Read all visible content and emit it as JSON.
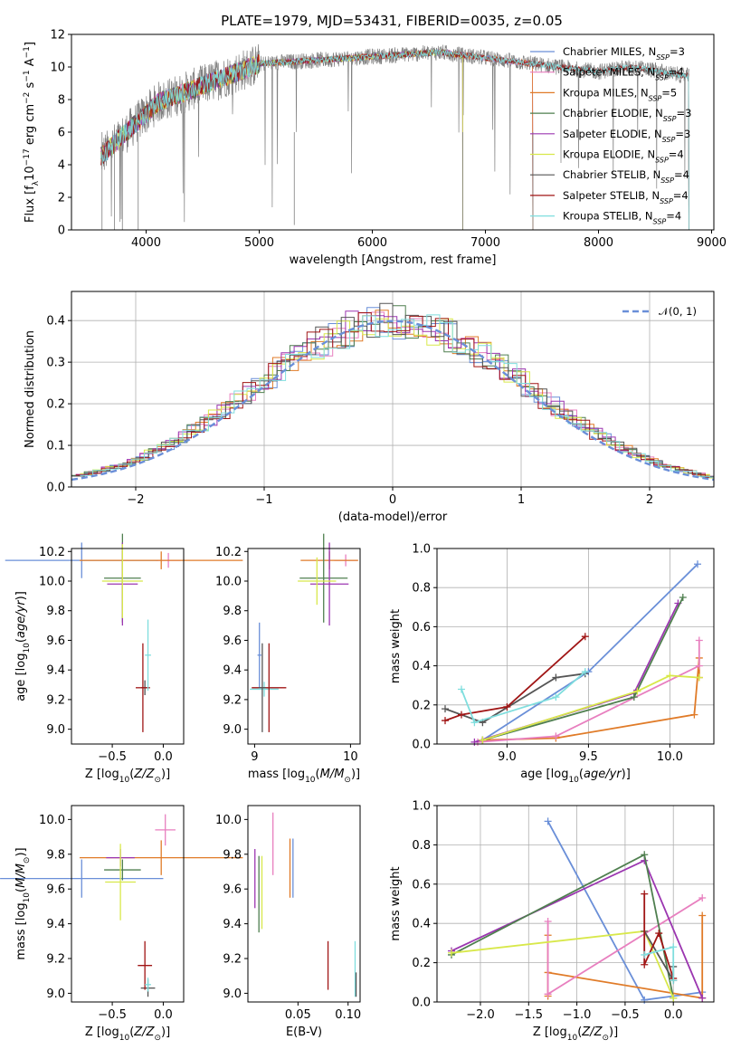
{
  "figure": {
    "title": "PLATE=1979, MJD=53431, FIBERID=0035, z=0.05"
  },
  "chart_data": [
    {
      "id": "spectrum",
      "type": "line",
      "xlabel": "wavelength [Angstrom, rest frame]",
      "ylabel": "Flux [fλ10⁻¹⁷ erg cm⁻² s⁻¹ A⁻¹]",
      "xlim": [
        3340,
        9020
      ],
      "ylim": [
        0,
        12
      ],
      "xticks": [
        4000,
        5000,
        6000,
        7000,
        8000,
        9000
      ],
      "yticks": [
        0,
        2,
        4,
        6,
        8,
        10,
        12
      ],
      "grid": false,
      "legend_position": "top-right",
      "observed": {
        "color": "#808080",
        "x_range": [
          3600,
          8800
        ]
      },
      "series": [
        {
          "name": "Chabrier MILES, N_SSP=3",
          "color": "#6a8fd8",
          "x_range": [
            3600,
            7420
          ]
        },
        {
          "name": "Salpeter MILES, N_SSP=4",
          "color": "#e87fbf",
          "x_range": [
            3600,
            7420
          ]
        },
        {
          "name": "Kroupa MILES, N_SSP=5",
          "color": "#e07b28",
          "x_range": [
            3600,
            7420
          ]
        },
        {
          "name": "Chabrier ELODIE, N_SSP=3",
          "color": "#4f7f4f",
          "x_range": [
            3600,
            6800
          ]
        },
        {
          "name": "Salpeter ELODIE, N_SSP=3",
          "color": "#9b36b0",
          "x_range": [
            3600,
            6800
          ]
        },
        {
          "name": "Kroupa ELODIE, N_SSP=4",
          "color": "#d8e84a",
          "x_range": [
            3600,
            6800
          ]
        },
        {
          "name": "Chabrier STELIB, N_SSP=4",
          "color": "#555555",
          "x_range": [
            3600,
            8800
          ]
        },
        {
          "name": "Salpeter STELIB, N_SSP=4",
          "color": "#a01515",
          "x_range": [
            3600,
            8800
          ]
        },
        {
          "name": "Kroupa STELIB, N_SSP=4",
          "color": "#7fdede",
          "x_range": [
            3600,
            8800
          ]
        }
      ],
      "legend_labels": [
        {
          "pre": "Chabrier MILES, N",
          "sub": "SSP",
          "post": "=3"
        },
        {
          "pre": "Salpeter MILES, N",
          "sub": "SSP",
          "post": "=4"
        },
        {
          "pre": "Kroupa MILES, N",
          "sub": "SSP",
          "post": "=5"
        },
        {
          "pre": "Chabrier ELODIE, N",
          "sub": "SSP",
          "post": "=3"
        },
        {
          "pre": "Salpeter ELODIE, N",
          "sub": "SSP",
          "post": "=3"
        },
        {
          "pre": "Kroupa ELODIE, N",
          "sub": "SSP",
          "post": "=4"
        },
        {
          "pre": "Chabrier STELIB, N",
          "sub": "SSP",
          "post": "=4"
        },
        {
          "pre": "Salpeter STELIB, N",
          "sub": "SSP",
          "post": "=4"
        },
        {
          "pre": "Kroupa STELIB, N",
          "sub": "SSP",
          "post": "=4"
        }
      ]
    },
    {
      "id": "residuals",
      "type": "line",
      "xlabel": "(data-model)/error",
      "ylabel": "Normed distribution",
      "xlim": [
        -2.5,
        2.5
      ],
      "ylim": [
        0,
        0.47
      ],
      "xticks": [
        -2,
        -1,
        0,
        1,
        2
      ],
      "yticks": [
        0.0,
        0.1,
        0.2,
        0.3,
        0.4
      ],
      "grid": true,
      "legend_position": "top-right",
      "gaussian": {
        "name": "N(0,1)",
        "mean": 0,
        "sigma": 1,
        "color": "#6a8fd8"
      },
      "series_colors": [
        "#6a8fd8",
        "#e87fbf",
        "#e07b28",
        "#4f7f4f",
        "#9b36b0",
        "#d8e84a",
        "#555555",
        "#a01515",
        "#7fdede"
      ]
    },
    {
      "id": "age_vs_Z",
      "type": "scatter",
      "xlabel": "Z [log10(Z/Z⊙)]",
      "ylabel": "age [log10(age/yr)]",
      "xlim": [
        -0.9,
        0.2
      ],
      "ylim": [
        8.9,
        10.22
      ],
      "xticks": [
        -0.5,
        0.0
      ],
      "yticks": [
        9.0,
        9.2,
        9.4,
        9.6,
        9.8,
        10.0,
        10.2
      ],
      "points": [
        {
          "color": "#6a8fd8",
          "x": -0.8,
          "y": 10.14,
          "xerr": 0.75,
          "yerr": 0.12
        },
        {
          "color": "#e87fbf",
          "x": 0.05,
          "y": 10.14,
          "xerr": 0.12,
          "yerr": 0.05
        },
        {
          "color": "#e07b28",
          "x": -0.02,
          "y": 10.14,
          "xerr": 0.8,
          "yerr": 0.06
        },
        {
          "color": "#4f7f4f",
          "x": -0.4,
          "y": 10.02,
          "xerr": 0.18,
          "yerr": 0.3
        },
        {
          "color": "#9b36b0",
          "x": -0.4,
          "y": 9.98,
          "xerr": 0.15,
          "yerr": 0.28
        },
        {
          "color": "#d8e84a",
          "x": -0.4,
          "y": 10.0,
          "xerr": 0.2,
          "yerr": 0.25
        },
        {
          "color": "#555555",
          "x": -0.18,
          "y": 9.28,
          "xerr": 0.04,
          "yerr": 0.05
        },
        {
          "color": "#a01515",
          "x": -0.2,
          "y": 9.28,
          "xerr": 0.07,
          "yerr": 0.3
        },
        {
          "color": "#7fdede",
          "x": -0.15,
          "y": 9.5,
          "xerr": 0.03,
          "yerr": 0.24
        }
      ]
    },
    {
      "id": "age_vs_mass",
      "type": "scatter",
      "xlabel": "mass [log10(M/M⊙)]",
      "ylabel": "",
      "xlim": [
        8.93,
        10.1
      ],
      "ylim": [
        8.9,
        10.22
      ],
      "xticks": [
        9,
        10
      ],
      "yticks": [
        9.0,
        9.2,
        9.4,
        9.6,
        9.8,
        10.0,
        10.2
      ],
      "points": [
        {
          "color": "#6a8fd8",
          "x": 9.05,
          "y": 9.5,
          "xerr": 0.02,
          "yerr": 0.22
        },
        {
          "color": "#7fdede",
          "x": 9.1,
          "y": 9.27,
          "xerr": 0.15,
          "yerr": 0.05
        },
        {
          "color": "#a01515",
          "x": 9.15,
          "y": 9.28,
          "xerr": 0.18,
          "yerr": 0.3
        },
        {
          "color": "#e87fbf",
          "x": 9.95,
          "y": 10.14,
          "xerr": 0.12,
          "yerr": 0.04
        },
        {
          "color": "#e07b28",
          "x": 9.78,
          "y": 10.14,
          "xerr": 0.3,
          "yerr": 0.06
        },
        {
          "color": "#4f7f4f",
          "x": 9.72,
          "y": 10.02,
          "xerr": 0.25,
          "yerr": 0.3
        },
        {
          "color": "#9b36b0",
          "x": 9.78,
          "y": 9.98,
          "xerr": 0.2,
          "yerr": 0.28
        },
        {
          "color": "#d8e84a",
          "x": 9.65,
          "y": 10.0,
          "xerr": 0.2,
          "yerr": 0.16
        },
        {
          "color": "#555555",
          "x": 9.08,
          "y": 9.28,
          "xerr": 0.04,
          "yerr": 0.3
        }
      ]
    },
    {
      "id": "weight_vs_age",
      "type": "line",
      "xlabel": "age [log10(age/yr)]",
      "ylabel": "mass weight",
      "xlim": [
        8.57,
        10.27
      ],
      "ylim": [
        0,
        1.0
      ],
      "xticks": [
        9.0,
        9.5,
        10.0
      ],
      "yticks": [
        0.0,
        0.2,
        0.4,
        0.6,
        0.8,
        1.0
      ],
      "grid": true,
      "series": [
        {
          "color": "#6a8fd8",
          "x": [
            8.85,
            9.5,
            10.17
          ],
          "y": [
            0.02,
            0.37,
            0.92
          ]
        },
        {
          "color": "#e07b28",
          "x": [
            8.85,
            9.3,
            10.15,
            10.18,
            10.18
          ],
          "y": [
            0.02,
            0.03,
            0.15,
            0.44,
            0.34
          ]
        },
        {
          "color": "#e87fbf",
          "x": [
            8.82,
            9.3,
            10.18,
            10.18
          ],
          "y": [
            0.01,
            0.04,
            0.4,
            0.53
          ]
        },
        {
          "color": "#9b36b0",
          "x": [
            8.8,
            9.78,
            10.05
          ],
          "y": [
            0.01,
            0.26,
            0.72
          ]
        },
        {
          "color": "#4f7f4f",
          "x": [
            8.85,
            9.78,
            10.08
          ],
          "y": [
            0.02,
            0.24,
            0.75
          ]
        },
        {
          "color": "#d8e84a",
          "x": [
            8.85,
            9.8,
            10.0,
            10.18
          ],
          "y": [
            0.02,
            0.27,
            0.35,
            0.34
          ]
        },
        {
          "color": "#555555",
          "x": [
            8.62,
            8.85,
            9.3,
            9.48
          ],
          "y": [
            0.18,
            0.11,
            0.34,
            0.36
          ]
        },
        {
          "color": "#a01515",
          "x": [
            8.62,
            8.72,
            9.0,
            9.48
          ],
          "y": [
            0.12,
            0.15,
            0.19,
            0.55
          ]
        },
        {
          "color": "#7fdede",
          "x": [
            8.72,
            8.8,
            9.3,
            9.48
          ],
          "y": [
            0.28,
            0.11,
            0.24,
            0.37
          ]
        }
      ]
    },
    {
      "id": "mass_vs_Z",
      "type": "scatter",
      "xlabel": "Z [log10(Z/Z⊙)]",
      "ylabel": "mass [log10(M/M⊙)]",
      "xlim": [
        -0.9,
        0.2
      ],
      "ylim": [
        8.95,
        10.08
      ],
      "xticks": [
        -0.5,
        0.0
      ],
      "yticks": [
        9.0,
        9.2,
        9.4,
        9.6,
        9.8,
        10.0
      ],
      "points": [
        {
          "color": "#6a8fd8",
          "x": -0.8,
          "y": 9.66,
          "xerr": 0.8,
          "yerr": 0.11
        },
        {
          "color": "#e87fbf",
          "x": 0.02,
          "y": 9.94,
          "xerr": 0.1,
          "yerr": 0.09
        },
        {
          "color": "#e07b28",
          "x": -0.02,
          "y": 9.78,
          "xerr": 0.8,
          "yerr": 0.1
        },
        {
          "color": "#4f7f4f",
          "x": -0.4,
          "y": 9.71,
          "xerr": 0.18,
          "yerr": 0.06
        },
        {
          "color": "#9b36b0",
          "x": -0.42,
          "y": 9.78,
          "xerr": 0.14,
          "yerr": 0.05
        },
        {
          "color": "#d8e84a",
          "x": -0.42,
          "y": 9.64,
          "xerr": 0.15,
          "yerr": 0.22
        },
        {
          "color": "#555555",
          "x": -0.15,
          "y": 9.03,
          "xerr": 0.07,
          "yerr": 0.05
        },
        {
          "color": "#a01515",
          "x": -0.18,
          "y": 9.16,
          "xerr": 0.07,
          "yerr": 0.14
        },
        {
          "color": "#7fdede",
          "x": -0.15,
          "y": 9.05,
          "xerr": 0.03,
          "yerr": 0.04
        }
      ]
    },
    {
      "id": "mass_vs_EBV",
      "type": "scatter",
      "xlabel": "E(B-V)",
      "ylabel": "",
      "xlim": [
        0.0,
        0.112
      ],
      "ylim": [
        8.95,
        10.08
      ],
      "xticks": [
        0.05,
        0.1
      ],
      "yticks": [
        9.0,
        9.2,
        9.4,
        9.6,
        9.8,
        10.0
      ],
      "points": [
        {
          "color": "#9b36b0",
          "x": 0.007,
          "y": 9.66,
          "yerr": 0.17
        },
        {
          "color": "#d8e84a",
          "x": 0.014,
          "y": 9.58,
          "yerr": 0.21
        },
        {
          "color": "#4f7f4f",
          "x": 0.011,
          "y": 9.57,
          "yerr": 0.22
        },
        {
          "color": "#e87fbf",
          "x": 0.025,
          "y": 9.86,
          "yerr": 0.18
        },
        {
          "color": "#e07b28",
          "x": 0.042,
          "y": 9.72,
          "yerr": 0.17
        },
        {
          "color": "#6a8fd8",
          "x": 0.045,
          "y": 9.72,
          "yerr": 0.17
        },
        {
          "color": "#a01515",
          "x": 0.08,
          "y": 9.16,
          "yerr": 0.14
        },
        {
          "color": "#7fdede",
          "x": 0.107,
          "y": 9.14,
          "yerr": 0.16
        },
        {
          "color": "#555555",
          "x": 0.108,
          "y": 9.05,
          "yerr": 0.07
        }
      ]
    },
    {
      "id": "weight_vs_Z",
      "type": "line",
      "xlabel": "Z [log10(Z/Z⊙)]",
      "ylabel": "mass weight",
      "xlim": [
        -2.45,
        0.42
      ],
      "ylim": [
        0,
        1.0
      ],
      "xticks": [
        -2.0,
        -1.5,
        -1.0,
        -0.5,
        0.0
      ],
      "yticks": [
        0.0,
        0.2,
        0.4,
        0.6,
        0.8,
        1.0
      ],
      "grid": true,
      "series": [
        {
          "color": "#6a8fd8",
          "x": [
            -1.3,
            -0.3,
            0.3
          ],
          "y": [
            0.92,
            0.01,
            0.05
          ]
        },
        {
          "color": "#e07b28",
          "x": [
            -1.3,
            -1.3,
            -1.3,
            0.3,
            0.3
          ],
          "y": [
            0.03,
            0.34,
            0.15,
            0.02,
            0.44
          ]
        },
        {
          "color": "#e87fbf",
          "x": [
            -1.3,
            -1.3,
            0.3
          ],
          "y": [
            0.41,
            0.04,
            0.53
          ]
        },
        {
          "color": "#9b36b0",
          "x": [
            -2.3,
            -0.3,
            0.3
          ],
          "y": [
            0.26,
            0.72,
            0.02
          ]
        },
        {
          "color": "#4f7f4f",
          "x": [
            -2.3,
            -0.3,
            0.0
          ],
          "y": [
            0.24,
            0.75,
            0.02
          ]
        },
        {
          "color": "#d8e84a",
          "x": [
            -2.3,
            -0.3,
            0.0
          ],
          "y": [
            0.25,
            0.36,
            0.02
          ]
        },
        {
          "color": "#555555",
          "x": [
            -0.3,
            0.0,
            0.0
          ],
          "y": [
            0.36,
            0.11,
            0.18
          ]
        },
        {
          "color": "#a01515",
          "x": [
            -0.3,
            -0.3,
            -0.15,
            0.0
          ],
          "y": [
            0.55,
            0.19,
            0.35,
            0.12
          ]
        },
        {
          "color": "#7fdede",
          "x": [
            -0.3,
            0.0,
            0.0
          ],
          "y": [
            0.24,
            0.28,
            0.11
          ]
        }
      ]
    }
  ]
}
